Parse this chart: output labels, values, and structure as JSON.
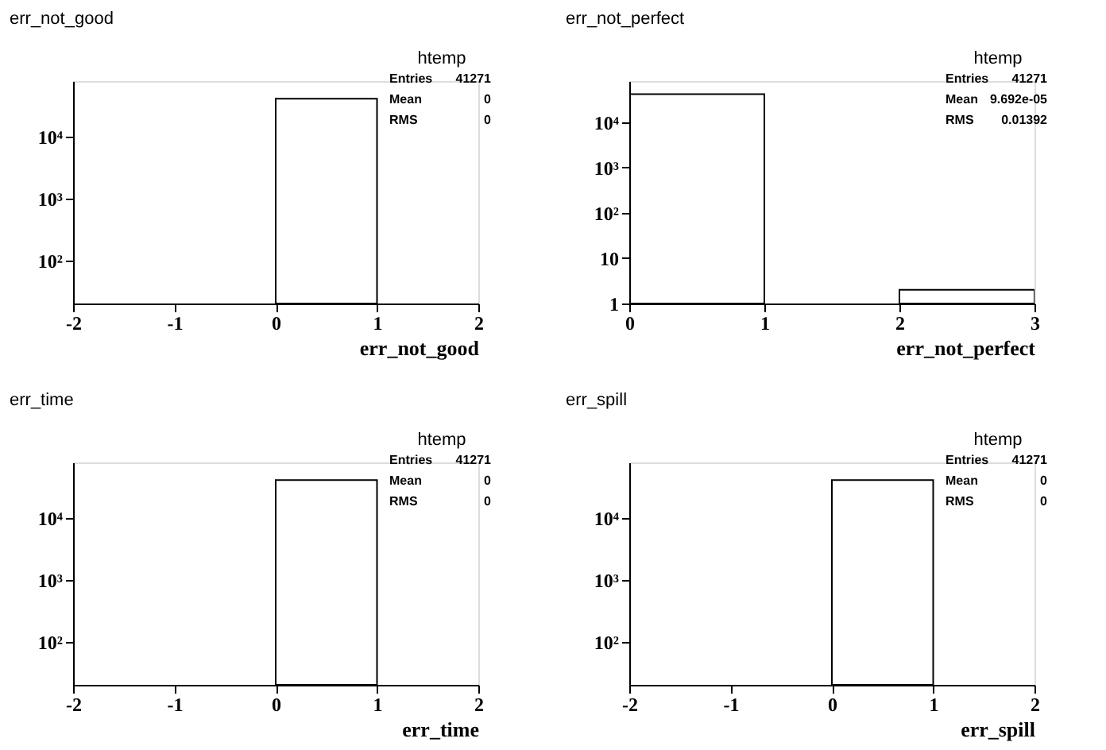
{
  "chart_data": [
    {
      "type": "histogram",
      "title": "err_not_good",
      "xlabel": "err_not_good",
      "bins": [
        -2,
        -1,
        0,
        1,
        2
      ],
      "values": [
        null,
        null,
        41271,
        null
      ],
      "color": "#000000",
      "xlim": [
        -2,
        2
      ],
      "xticks": [
        -2,
        -1,
        0,
        1,
        2
      ],
      "ylim": [
        20,
        80000
      ],
      "yticks": [
        {
          "value": 100,
          "label": "10²"
        },
        {
          "value": 1000,
          "label": "10³"
        },
        {
          "value": 10000,
          "label": "10⁴"
        }
      ],
      "log": true,
      "grid": false,
      "annotations": [
        "htemp",
        "Entries",
        "41271",
        "Mean",
        "0",
        "RMS",
        "0"
      ]
    },
    {
      "type": "histogram",
      "title": "err_not_perfect",
      "xlabel": "err_not_perfect",
      "bins": [
        0,
        1,
        2,
        3
      ],
      "values": [
        41269,
        null,
        2
      ],
      "color": "#000000",
      "xlim": [
        0,
        3
      ],
      "xticks": [
        0,
        1,
        2,
        3
      ],
      "ylim": [
        1,
        80000
      ],
      "yticks": [
        1,
        10,
        {
          "value": 100,
          "label": "10²"
        },
        {
          "value": 1000,
          "label": "10³"
        },
        {
          "value": 10000,
          "label": "10⁴"
        }
      ],
      "log": true,
      "grid": false,
      "annotations": [
        "htemp",
        "Entries",
        "41271",
        "Mean",
        "9.692e-05",
        "RMS",
        "0.01392"
      ]
    },
    {
      "type": "histogram",
      "title": "err_time",
      "xlabel": "err_time",
      "bins": [
        -2,
        -1,
        0,
        1,
        2
      ],
      "values": [
        null,
        null,
        41271,
        null
      ],
      "color": "#000000",
      "xlim": [
        -2,
        2
      ],
      "xticks": [
        -2,
        -1,
        0,
        1,
        2
      ],
      "ylim": [
        20,
        80000
      ],
      "yticks": [
        {
          "value": 100,
          "label": "10²"
        },
        {
          "value": 1000,
          "label": "10³"
        },
        {
          "value": 10000,
          "label": "10⁴"
        }
      ],
      "log": true,
      "grid": false,
      "annotations": [
        "htemp",
        "Entries",
        "41271",
        "Mean",
        "0",
        "RMS",
        "0"
      ]
    },
    {
      "type": "histogram",
      "title": "err_spill",
      "xlabel": "err_spill",
      "bins": [
        -2,
        -1,
        0,
        1,
        2
      ],
      "values": [
        null,
        null,
        41271,
        null
      ],
      "color": "#000000",
      "xlim": [
        -2,
        2
      ],
      "xticks": [
        -2,
        -1,
        0,
        1,
        2
      ],
      "ylim": [
        20,
        80000
      ],
      "yticks": [
        {
          "value": 100,
          "label": "10²"
        },
        {
          "value": 1000,
          "label": "10³"
        },
        {
          "value": 10000,
          "label": "10⁴"
        }
      ],
      "log": true,
      "grid": false,
      "annotations": [
        "htemp",
        "Entries",
        "41271",
        "Mean",
        "0",
        "RMS",
        "0"
      ]
    }
  ]
}
